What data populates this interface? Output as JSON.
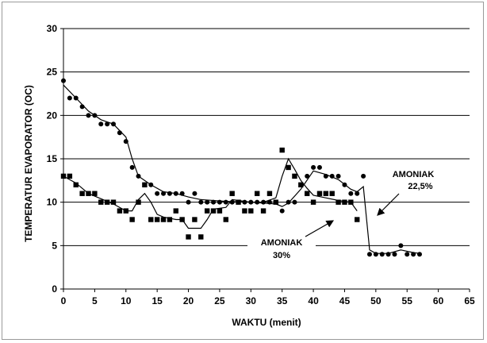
{
  "chart_data": {
    "type": "scatter",
    "title": "",
    "xlabel": "WAKTU (menit)",
    "ylabel": "TEMPERATUR EVAPORATOR (OC)",
    "xlim": [
      0,
      65
    ],
    "ylim": [
      0,
      30
    ],
    "xticks": [
      0,
      5,
      10,
      15,
      20,
      25,
      30,
      35,
      40,
      45,
      50,
      55,
      60,
      65
    ],
    "yticks": [
      0,
      5,
      10,
      15,
      20,
      25,
      30
    ],
    "grid": "horizontal",
    "annotations": [
      {
        "label_lines": [
          "AMONIAK",
          "22,5%"
        ],
        "points_to": "circles"
      },
      {
        "label_lines": [
          "AMONIAK",
          "30%"
        ],
        "points_to": "squares"
      }
    ],
    "series": [
      {
        "marker": "circle",
        "points": [
          [
            0,
            24
          ],
          [
            1,
            22
          ],
          [
            2,
            22
          ],
          [
            3,
            21
          ],
          [
            4,
            20
          ],
          [
            5,
            20
          ],
          [
            6,
            19
          ],
          [
            7,
            19
          ],
          [
            8,
            19
          ],
          [
            9,
            18
          ],
          [
            10,
            17
          ],
          [
            11,
            14
          ],
          [
            12,
            13
          ],
          [
            13,
            12
          ],
          [
            14,
            12
          ],
          [
            15,
            11
          ],
          [
            16,
            11
          ],
          [
            17,
            11
          ],
          [
            18,
            11
          ],
          [
            19,
            11
          ],
          [
            20,
            10
          ],
          [
            21,
            11
          ],
          [
            22,
            10
          ],
          [
            23,
            10
          ],
          [
            24,
            10
          ],
          [
            25,
            10
          ],
          [
            26,
            10
          ],
          [
            27,
            10
          ],
          [
            28,
            10
          ],
          [
            29,
            10
          ],
          [
            30,
            10
          ],
          [
            31,
            10
          ],
          [
            32,
            10
          ],
          [
            33,
            10
          ],
          [
            34,
            10
          ],
          [
            35,
            9
          ],
          [
            36,
            10
          ],
          [
            37,
            10
          ],
          [
            38,
            12
          ],
          [
            39,
            13
          ],
          [
            40,
            14
          ],
          [
            41,
            14
          ],
          [
            42,
            13
          ],
          [
            43,
            13
          ],
          [
            44,
            13
          ],
          [
            45,
            12
          ],
          [
            46,
            11
          ],
          [
            47,
            11
          ],
          [
            48,
            13
          ],
          [
            49,
            4
          ],
          [
            50,
            4
          ],
          [
            51,
            4
          ],
          [
            52,
            4
          ],
          [
            53,
            4
          ],
          [
            54,
            5
          ],
          [
            55,
            4
          ],
          [
            56,
            4
          ],
          [
            57,
            4
          ]
        ],
        "trend": [
          [
            0,
            23.5
          ],
          [
            2,
            22
          ],
          [
            4,
            20.5
          ],
          [
            6,
            19.5
          ],
          [
            8,
            19
          ],
          [
            10,
            17.5
          ],
          [
            11,
            15
          ],
          [
            12,
            13
          ],
          [
            14,
            12
          ],
          [
            16,
            11.2
          ],
          [
            18,
            11
          ],
          [
            20,
            10.6
          ],
          [
            22,
            10.3
          ],
          [
            26,
            10.1
          ],
          [
            30,
            10
          ],
          [
            34,
            9.8
          ],
          [
            35,
            9.5
          ],
          [
            36,
            9.9
          ],
          [
            38,
            11.5
          ],
          [
            40,
            13.6
          ],
          [
            42,
            13.2
          ],
          [
            44,
            12.6
          ],
          [
            46,
            11.5
          ],
          [
            47,
            11.2
          ],
          [
            48,
            11.8
          ],
          [
            49,
            4.5
          ],
          [
            50,
            4.1
          ],
          [
            52,
            4.1
          ],
          [
            54,
            4.5
          ],
          [
            56,
            4.2
          ],
          [
            57,
            4.1
          ]
        ]
      },
      {
        "marker": "square",
        "points": [
          [
            0,
            13
          ],
          [
            1,
            13
          ],
          [
            2,
            12
          ],
          [
            3,
            11
          ],
          [
            4,
            11
          ],
          [
            5,
            11
          ],
          [
            6,
            10
          ],
          [
            7,
            10
          ],
          [
            8,
            10
          ],
          [
            9,
            9
          ],
          [
            10,
            9
          ],
          [
            11,
            8
          ],
          [
            12,
            10
          ],
          [
            13,
            12
          ],
          [
            14,
            8
          ],
          [
            15,
            8
          ],
          [
            16,
            8
          ],
          [
            17,
            8
          ],
          [
            18,
            9
          ],
          [
            19,
            8
          ],
          [
            20,
            6
          ],
          [
            21,
            8
          ],
          [
            22,
            6
          ],
          [
            23,
            9
          ],
          [
            24,
            9
          ],
          [
            25,
            9
          ],
          [
            26,
            8
          ],
          [
            27,
            11
          ],
          [
            28,
            10
          ],
          [
            29,
            9
          ],
          [
            30,
            9
          ],
          [
            31,
            11
          ],
          [
            32,
            9
          ],
          [
            33,
            11
          ],
          [
            34,
            10
          ],
          [
            35,
            16
          ],
          [
            36,
            14
          ],
          [
            37,
            13
          ],
          [
            38,
            12
          ],
          [
            39,
            11
          ],
          [
            40,
            10
          ],
          [
            41,
            11
          ],
          [
            42,
            11
          ],
          [
            43,
            11
          ],
          [
            44,
            10
          ],
          [
            45,
            10
          ],
          [
            46,
            10
          ],
          [
            47,
            8
          ]
        ],
        "trend": [
          [
            0,
            13
          ],
          [
            2,
            12.2
          ],
          [
            4,
            11
          ],
          [
            6,
            10.4
          ],
          [
            8,
            9.8
          ],
          [
            10,
            9
          ],
          [
            11,
            9
          ],
          [
            12,
            10.3
          ],
          [
            13,
            11
          ],
          [
            14,
            10
          ],
          [
            15,
            8.6
          ],
          [
            16,
            8.3
          ],
          [
            18,
            8
          ],
          [
            19,
            8
          ],
          [
            20,
            7
          ],
          [
            22,
            7
          ],
          [
            23,
            8
          ],
          [
            24,
            9.2
          ],
          [
            26,
            9.4
          ],
          [
            27,
            10.3
          ],
          [
            28,
            10.2
          ],
          [
            30,
            10
          ],
          [
            32,
            10
          ],
          [
            34,
            10.5
          ],
          [
            35,
            13
          ],
          [
            36,
            15
          ],
          [
            37,
            13.8
          ],
          [
            38,
            12.5
          ],
          [
            39,
            11.6
          ],
          [
            40,
            10.8
          ],
          [
            42,
            10.5
          ],
          [
            44,
            10.2
          ],
          [
            46,
            10
          ],
          [
            47,
            9
          ]
        ]
      }
    ]
  }
}
